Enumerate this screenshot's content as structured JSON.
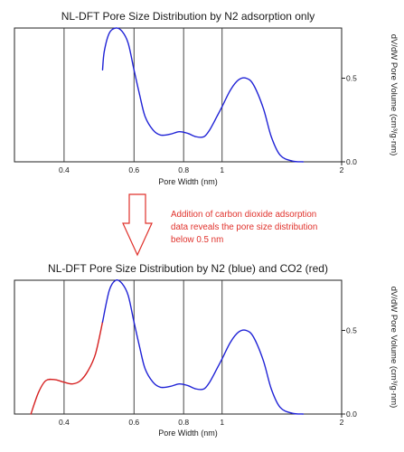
{
  "chart_data": [
    {
      "type": "line",
      "title": "NL-DFT Pore Size Distribution by N2 adsorption only",
      "xlabel": "Pore Width (nm)",
      "ylabel": "dV/dW Pore Volume (cm³/g·nm)",
      "x_scale": "log",
      "xlim": [
        0.3,
        2.0
      ],
      "ylim": [
        0.0,
        0.8
      ],
      "x_ticks": [
        "0.4",
        "0.6",
        "0.8",
        "1",
        "2"
      ],
      "y_ticks": [
        "0.5",
        "0.0"
      ],
      "grid": "vertical",
      "series": [
        {
          "color": "#1f22d6",
          "x": [
            0.5,
            0.505,
            0.52,
            0.54,
            0.56,
            0.58,
            0.6,
            0.62,
            0.64,
            0.67,
            0.7,
            0.74,
            0.78,
            0.82,
            0.86,
            0.9,
            0.93,
            0.97,
            1.0,
            1.05,
            1.1,
            1.15,
            1.2,
            1.27,
            1.33,
            1.4,
            1.5,
            1.6
          ],
          "y": [
            0.55,
            0.66,
            0.77,
            0.8,
            0.78,
            0.71,
            0.55,
            0.4,
            0.27,
            0.19,
            0.16,
            0.165,
            0.18,
            0.17,
            0.15,
            0.15,
            0.19,
            0.27,
            0.33,
            0.43,
            0.49,
            0.5,
            0.46,
            0.32,
            0.15,
            0.04,
            0.005,
            0.0
          ]
        }
      ]
    },
    {
      "type": "line",
      "title": "NL-DFT Pore Size Distribution by N2 (blue) and CO2 (red)",
      "xlabel": "Pore Width (nm)",
      "ylabel": "dV/dW Pore Volume (cm³/g·nm)",
      "x_scale": "log",
      "xlim": [
        0.3,
        2.0
      ],
      "ylim": [
        0.0,
        0.8
      ],
      "x_ticks": [
        "0.4",
        "0.6",
        "0.8",
        "1",
        "2"
      ],
      "y_ticks": [
        "0.5",
        "0.0"
      ],
      "grid": "vertical",
      "series": [
        {
          "color": "#d62020",
          "x": [
            0.33,
            0.345,
            0.36,
            0.38,
            0.4,
            0.42,
            0.44,
            0.46,
            0.48,
            0.5
          ],
          "y": [
            0.0,
            0.13,
            0.2,
            0.205,
            0.19,
            0.18,
            0.2,
            0.26,
            0.36,
            0.55
          ]
        },
        {
          "color": "#1f22d6",
          "x": [
            0.5,
            0.52,
            0.54,
            0.56,
            0.58,
            0.6,
            0.62,
            0.64,
            0.67,
            0.7,
            0.74,
            0.78,
            0.82,
            0.86,
            0.9,
            0.93,
            0.97,
            1.0,
            1.05,
            1.1,
            1.15,
            1.2,
            1.27,
            1.33,
            1.4,
            1.5,
            1.6
          ],
          "y": [
            0.55,
            0.74,
            0.8,
            0.78,
            0.71,
            0.55,
            0.4,
            0.27,
            0.19,
            0.16,
            0.165,
            0.18,
            0.17,
            0.15,
            0.15,
            0.19,
            0.27,
            0.33,
            0.43,
            0.49,
            0.5,
            0.46,
            0.32,
            0.15,
            0.04,
            0.005,
            0.0
          ]
        }
      ]
    }
  ],
  "annotation": {
    "lines": [
      "Addition of carbon dioxide adsorption",
      "data reveals the pore size distribution",
      "below 0.5 nm"
    ],
    "arrow_color": "#e0312b"
  }
}
